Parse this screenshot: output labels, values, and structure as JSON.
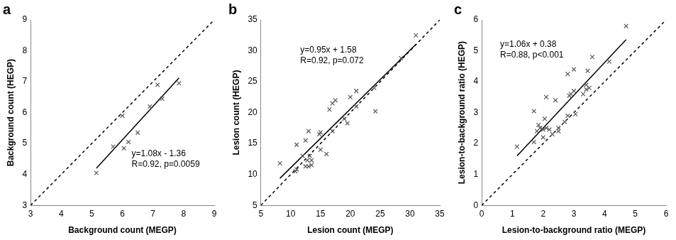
{
  "chart_data": [
    {
      "type": "scatter",
      "title": "a",
      "x_label": "Background count (MEGP)",
      "y_label": "Background count (HEGP)",
      "xlim": [
        3,
        9
      ],
      "ylim": [
        3,
        9
      ],
      "xticks": [
        3,
        4,
        5,
        6,
        7,
        8,
        9
      ],
      "yticks": [
        3,
        4,
        5,
        6,
        7,
        8,
        9
      ],
      "grid": false,
      "annotations": [
        "y=1.08x - 1.36",
        "R=0.92, p=0.0059"
      ],
      "series": [
        {
          "type": "scatter",
          "marker": "x",
          "color": "#595959",
          "x": [
            5.15,
            5.7,
            6.0,
            6.05,
            6.2,
            6.5,
            6.9,
            7.15,
            7.3,
            7.85
          ],
          "values": [
            4.05,
            4.9,
            5.9,
            4.85,
            5.05,
            5.35,
            6.2,
            6.9,
            6.45,
            6.95
          ]
        },
        {
          "type": "line",
          "line_style": "solid",
          "color": "#000000",
          "x": [
            5.15,
            7.85
          ],
          "values": [
            4.2,
            7.12
          ]
        },
        {
          "type": "line",
          "line_style": "dashed",
          "color": "#000000",
          "x": [
            3,
            9
          ],
          "values": [
            3,
            9
          ]
        }
      ]
    },
    {
      "type": "scatter",
      "title": "b",
      "x_label": "Lesion count (MEGP)",
      "y_label": "Lesion count (HEGP)",
      "xlim": [
        5,
        35
      ],
      "ylim": [
        5,
        35
      ],
      "xticks": [
        5,
        10,
        15,
        20,
        25,
        30,
        35
      ],
      "yticks": [
        5,
        10,
        15,
        20,
        25,
        30,
        35
      ],
      "grid": false,
      "annotations": [
        "y=0.95x + 1.58",
        "R=0.92, p=0.072"
      ],
      "series": [
        {
          "type": "scatter",
          "marker": "x",
          "color": "#595959",
          "x": [
            8.2,
            10.8,
            11,
            11,
            12,
            12.5,
            12.5,
            12.8,
            13,
            13,
            13.2,
            13.5,
            13.5,
            14.8,
            15,
            15,
            16,
            16.5,
            17,
            17.5,
            17,
            19,
            19.5,
            20,
            21,
            21,
            24,
            24.2,
            28.5,
            31
          ],
          "values": [
            11.8,
            10.5,
            10.8,
            14.8,
            13,
            15.5,
            11.3,
            12.3,
            11.3,
            17,
            13,
            12.3,
            11.5,
            16.5,
            16.8,
            14,
            13.3,
            20.5,
            21.5,
            22,
            17,
            19,
            18.3,
            22.5,
            23.5,
            21,
            24,
            20.2,
            28.8,
            32.5
          ]
        },
        {
          "type": "line",
          "line_style": "solid",
          "color": "#000000",
          "x": [
            8.2,
            31
          ],
          "values": [
            9.37,
            31.03
          ]
        },
        {
          "type": "line",
          "line_style": "dashed",
          "color": "#000000",
          "x": [
            5,
            35
          ],
          "values": [
            5,
            35
          ]
        }
      ]
    },
    {
      "type": "scatter",
      "title": "c",
      "x_label": "Lesion-to-background ratio (MEGP)",
      "y_label": "Lesion-to-background ratio (HEGP)",
      "xlim": [
        0,
        6
      ],
      "ylim": [
        0,
        6
      ],
      "xticks": [
        0,
        1,
        2,
        3,
        4,
        5,
        6
      ],
      "yticks": [
        0,
        1,
        2,
        3,
        4,
        5,
        6
      ],
      "grid": false,
      "annotations": [
        "y=1.06x + 0.38",
        "R=0.88, p<0.001"
      ],
      "series": [
        {
          "type": "scatter",
          "marker": "x",
          "color": "#595959",
          "x": [
            1.15,
            1.7,
            1.7,
            1.8,
            1.85,
            1.9,
            2.0,
            2.0,
            2.05,
            2.1,
            2.1,
            2.2,
            2.3,
            2.4,
            2.5,
            2.5,
            2.7,
            2.8,
            2.8,
            2.85,
            2.9,
            3.0,
            3.0,
            3.05,
            3.3,
            3.4,
            3.4,
            3.45,
            3.5,
            3.6,
            4.15,
            4.7
          ],
          "values": [
            1.9,
            2.05,
            3.05,
            2.4,
            2.6,
            2.5,
            2.2,
            2.45,
            2.8,
            2.5,
            3.5,
            2.45,
            2.3,
            3.4,
            2.5,
            2.4,
            2.7,
            2.9,
            4.25,
            3.55,
            3.6,
            4.4,
            3.7,
            2.95,
            3.6,
            3.75,
            3.9,
            4.35,
            3.8,
            4.8,
            4.65,
            5.8
          ]
        },
        {
          "type": "line",
          "line_style": "solid",
          "color": "#000000",
          "x": [
            1.15,
            4.7
          ],
          "values": [
            1.6,
            5.36
          ]
        },
        {
          "type": "line",
          "line_style": "dashed",
          "color": "#000000",
          "x": [
            0,
            6
          ],
          "values": [
            0,
            6
          ]
        }
      ]
    }
  ]
}
